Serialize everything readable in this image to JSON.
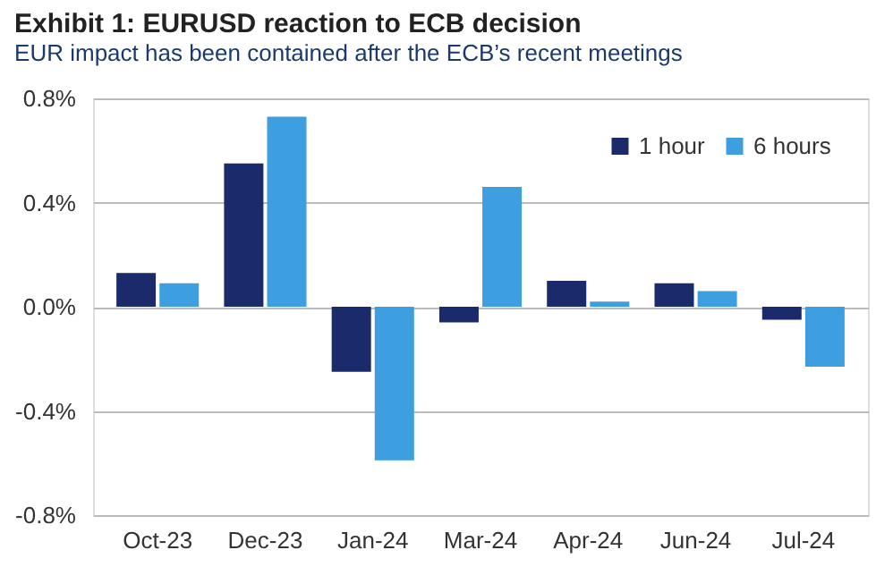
{
  "chart_data": {
    "type": "bar",
    "title": "Exhibit 1: EURUSD reaction to ECB decision",
    "subtitle": "EUR impact has been contained after the ECB’s recent meetings",
    "categories": [
      "Oct-23",
      "Dec-23",
      "Jan-24",
      "Mar-24",
      "Apr-24",
      "Jun-24",
      "Jul-24"
    ],
    "series": [
      {
        "name": "1 hour",
        "color": "#1b2a6b",
        "values": [
          0.13,
          0.55,
          -0.25,
          -0.06,
          0.1,
          0.09,
          -0.05
        ]
      },
      {
        "name": "6 hours",
        "color": "#3d9ee0",
        "values": [
          0.09,
          0.73,
          -0.59,
          0.46,
          0.02,
          0.06,
          -0.23
        ]
      }
    ],
    "ylim": [
      -0.8,
      0.8
    ],
    "yticks": [
      {
        "value": -0.8,
        "label": "-0.8%"
      },
      {
        "value": -0.4,
        "label": "-0.4%"
      },
      {
        "value": 0,
        "label": "0.0%"
      },
      {
        "value": 0.4,
        "label": "0.4%"
      },
      {
        "value": 0.8,
        "label": "0.8%"
      }
    ],
    "grid": "y",
    "legend": "top right"
  }
}
